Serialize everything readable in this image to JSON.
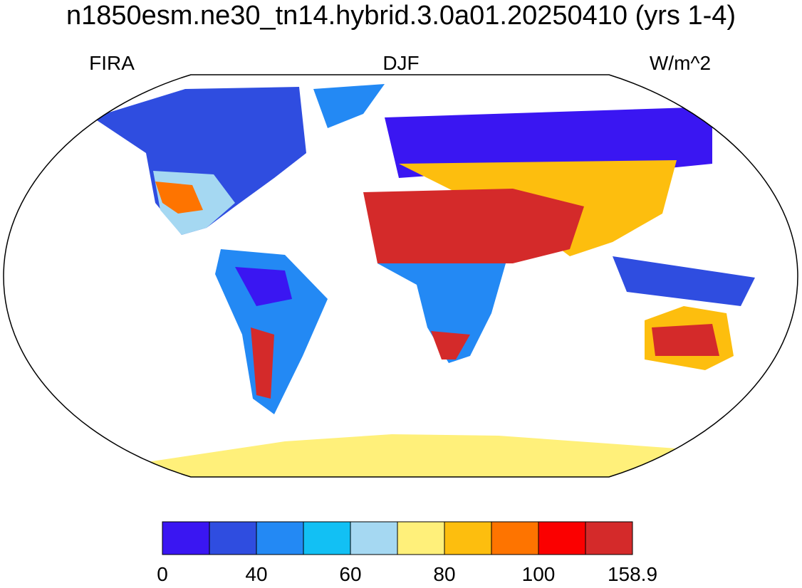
{
  "title": "n1850esm.ne30_tn14.hybrid.3.0a01.20250410 (yrs 1-4)",
  "left_label": "FIRA",
  "center_label": "DJF",
  "right_label": "W/m^2",
  "colorbar": {
    "colors": [
      "#3a16f2",
      "#2f4de0",
      "#2389f4",
      "#12c0f4",
      "#a5d8f2",
      "#fff07a",
      "#fdbe0e",
      "#fe7400",
      "#fb0000",
      "#d42a2a"
    ],
    "ticks": [
      0,
      40,
      60,
      80,
      100,
      158.9
    ]
  }
}
